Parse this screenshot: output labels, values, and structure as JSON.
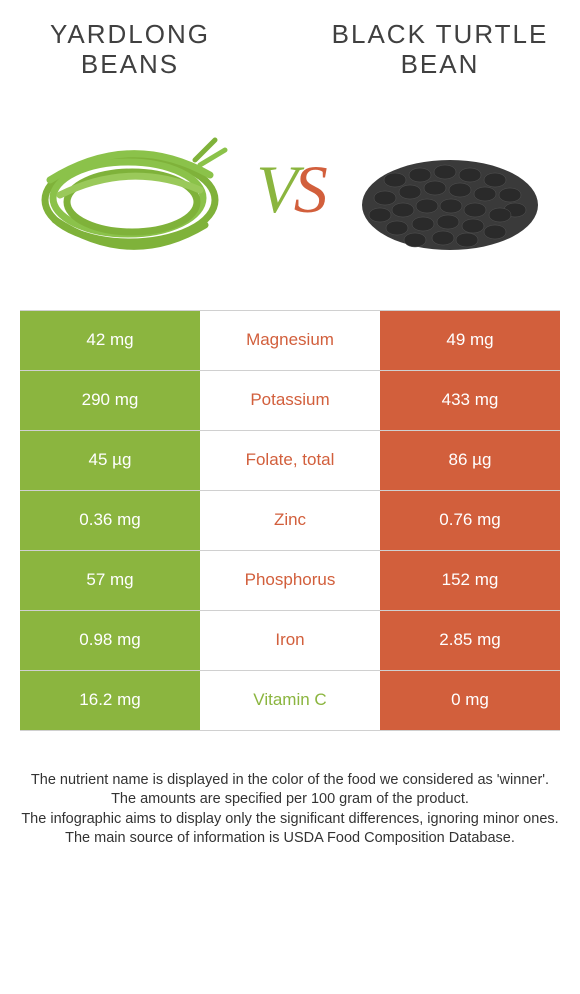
{
  "colors": {
    "green": "#8bb53f",
    "orange": "#d25f3c",
    "text": "#404040"
  },
  "titles": {
    "left": "Yardlong beans",
    "right": "Black turtle bean"
  },
  "vs": {
    "v": "V",
    "s": "S"
  },
  "rows": [
    {
      "label": "Magnesium",
      "left": "42 mg",
      "right": "49 mg",
      "winner": "right"
    },
    {
      "label": "Potassium",
      "left": "290 mg",
      "right": "433 mg",
      "winner": "right"
    },
    {
      "label": "Folate, total",
      "left": "45 µg",
      "right": "86 µg",
      "winner": "right"
    },
    {
      "label": "Zinc",
      "left": "0.36 mg",
      "right": "0.76 mg",
      "winner": "right"
    },
    {
      "label": "Phosphorus",
      "left": "57 mg",
      "right": "152 mg",
      "winner": "right"
    },
    {
      "label": "Iron",
      "left": "0.98 mg",
      "right": "2.85 mg",
      "winner": "right"
    },
    {
      "label": "Vitamin C",
      "left": "16.2 mg",
      "right": "0 mg",
      "winner": "left"
    }
  ],
  "footer": {
    "line1": "The nutrient name is displayed in the color of the food we considered as 'winner'.",
    "line2": "The amounts are specified per 100 gram of the product.",
    "line3": "The infographic aims to display only the significant differences, ignoring minor ones.",
    "line4": "The main source of information is USDA Food Composition Database."
  }
}
